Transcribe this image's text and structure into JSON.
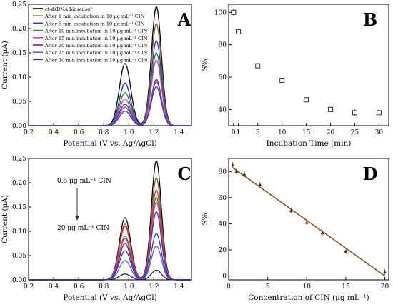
{
  "chart_data": [
    {
      "panel": "A",
      "type": "line",
      "xlabel": "Potential (V vs. Ag/AgCl)",
      "ylabel": "Current (μA)",
      "xlim": [
        0.2,
        1.5
      ],
      "ylim": [
        0,
        0.25
      ],
      "xticks": [
        "0.2",
        "0.4",
        "0.6",
        "0.8",
        "1.0",
        "1.2",
        "1.4"
      ],
      "yticks": [
        "0.00",
        "0.05",
        "0.10",
        "0.15",
        "0.20",
        "0.25"
      ],
      "legend": "top-left",
      "peak_positions": [
        0.97,
        1.22
      ],
      "series": [
        {
          "name": "ct-dsDNA biosensor",
          "color": "#000000",
          "peaks": [
            0.128,
            0.245
          ]
        },
        {
          "name": "After 1 min incubation in 10 μg mL⁻¹ CIN",
          "color": "#8b5a2b",
          "peaks": [
            0.088,
            0.21
          ]
        },
        {
          "name": "After 5 min incubation in 10 μg mL⁻¹ CIN",
          "color": "#1f3fbf",
          "peaks": [
            0.087,
            0.175
          ]
        },
        {
          "name": "After 10 min incubation in 10 μg mL⁻¹ CIN",
          "color": "#2e8b2e",
          "peaks": [
            0.068,
            0.15
          ]
        },
        {
          "name": "After 15 min incubation in 10 μg mL⁻¹ CIN",
          "color": "#c040c0",
          "peaks": [
            0.055,
            0.135
          ]
        },
        {
          "name": "After 20 min incubation in 10 μg mL⁻¹ CIN",
          "color": "#7a1f7a",
          "peaks": [
            0.044,
            0.095
          ]
        },
        {
          "name": "After 25 min incubation in 10 μg mL⁻¹ CIN",
          "color": "#6a5acd",
          "peaks": [
            0.038,
            0.09
          ]
        },
        {
          "name": "After 30 min incubation in 10 μg mL⁻¹ CIN",
          "color": "#4b2fa8",
          "peaks": [
            0.03,
            0.08
          ]
        }
      ]
    },
    {
      "panel": "B",
      "type": "scatter",
      "xlabel": "Incubation Time (min)",
      "ylabel": "S%",
      "xlim": [
        -1,
        32
      ],
      "ylim": [
        30,
        105
      ],
      "xticks": [
        "0",
        "1",
        "5",
        "10",
        "15",
        "20",
        "25",
        "30"
      ],
      "xtick_values": [
        0,
        1,
        5,
        10,
        15,
        20,
        25,
        30
      ],
      "yticks": [
        "40",
        "60",
        "80",
        "100"
      ],
      "x": [
        0,
        1,
        5,
        10,
        15,
        20,
        25,
        30
      ],
      "y": [
        100,
        88,
        67,
        58,
        46,
        40,
        38,
        38
      ],
      "err": [
        2,
        1.5,
        1.5,
        1.5,
        1.5,
        1.5,
        2,
        1.5
      ]
    },
    {
      "panel": "C",
      "type": "line",
      "xlabel": "Potential (V vs. Ag/AgCl)",
      "ylabel": "Current (μA)",
      "xlim": [
        0.2,
        1.5
      ],
      "ylim": [
        0,
        0.25
      ],
      "xticks": [
        "0.2",
        "0.4",
        "0.6",
        "0.8",
        "1.0",
        "1.2",
        "1.4"
      ],
      "yticks": [
        "0.00",
        "0.05",
        "0.10",
        "0.15",
        "0.20",
        "0.25"
      ],
      "annotation_top": "0.5 μg mL⁻¹ CIN",
      "annotation_bottom": "20 μg mL⁻¹ CIN",
      "peak_positions": [
        0.97,
        1.22
      ],
      "series": [
        {
          "color": "#000000",
          "peaks": [
            0.128,
            0.245
          ]
        },
        {
          "color": "#8b5a2b",
          "peaks": [
            0.115,
            0.21
          ]
        },
        {
          "color": "#e0303a",
          "peaks": [
            0.11,
            0.185
          ]
        },
        {
          "color": "#2e8b2e",
          "peaks": [
            0.09,
            0.17
          ]
        },
        {
          "color": "#c040c0",
          "peaks": [
            0.085,
            0.16
          ]
        },
        {
          "color": "#7a1f7a",
          "peaks": [
            0.075,
            0.14
          ]
        },
        {
          "color": "#1f3fbf",
          "peaks": [
            0.06,
            0.095
          ]
        },
        {
          "color": "#6a5acd",
          "peaks": [
            0.04,
            0.07
          ]
        },
        {
          "color": "#222266",
          "peaks": [
            0.012,
            0.02
          ]
        }
      ]
    },
    {
      "panel": "D",
      "type": "scatter",
      "xlabel": "Concentration of CIN (μg mL⁻¹)",
      "ylabel": "S%",
      "xlim": [
        0,
        20.5
      ],
      "ylim": [
        -3,
        90
      ],
      "xticks": [
        "0",
        "5",
        "10",
        "15",
        "20"
      ],
      "yticks": [
        "0",
        "20",
        "40",
        "60",
        "80"
      ],
      "x": [
        0.5,
        1,
        2,
        4,
        8,
        10,
        12,
        15,
        20
      ],
      "y": [
        85,
        80,
        78,
        70,
        50,
        41,
        33,
        19,
        3
      ],
      "fit": [
        [
          0.5,
          83
        ],
        [
          20,
          0
        ]
      ],
      "fit_color": "#8b4513"
    }
  ]
}
